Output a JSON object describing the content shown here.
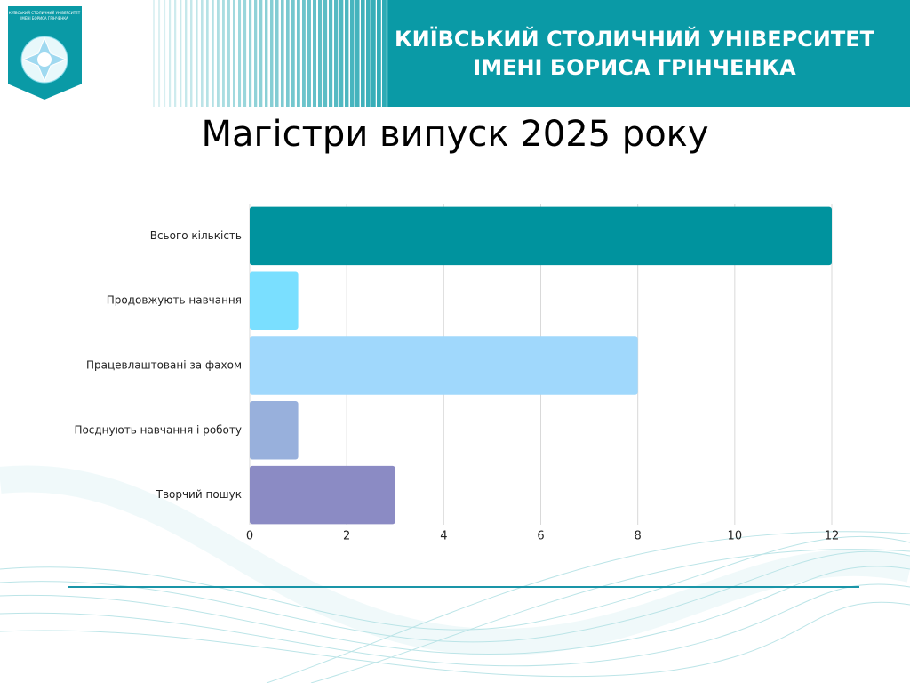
{
  "header": {
    "title_lines": [
      "КИЇВСЬКИЙ СТОЛИЧНИЙ УНІВЕРСИТЕТ",
      "ІМЕНІ БОРИСА ГРІНЧЕНКА"
    ],
    "logo_text": [
      "КИЇВСЬКИЙ СТОЛИЧНИЙ УНІВЕРСИТЕТ",
      "ІМЕНІ БОРИСА ГРІНЧЕНКА"
    ]
  },
  "chart_data": {
    "type": "barh",
    "title": "Магістри випуск 2025 року",
    "categories": [
      "Всього кількість",
      "Продовжують навчання",
      "Працевлаштовані за фахом",
      "Поєднують навчання і роботу",
      "Творчий пошук"
    ],
    "values": [
      12,
      1,
      8,
      1,
      3
    ],
    "colors": [
      "#00939e",
      "#7adfff",
      "#a0d8fc",
      "#98b0dc",
      "#8b8bc4"
    ],
    "xlim": [
      0,
      12
    ],
    "xticks": [
      0,
      2,
      4,
      6,
      8,
      10,
      12
    ],
    "grid": true
  }
}
